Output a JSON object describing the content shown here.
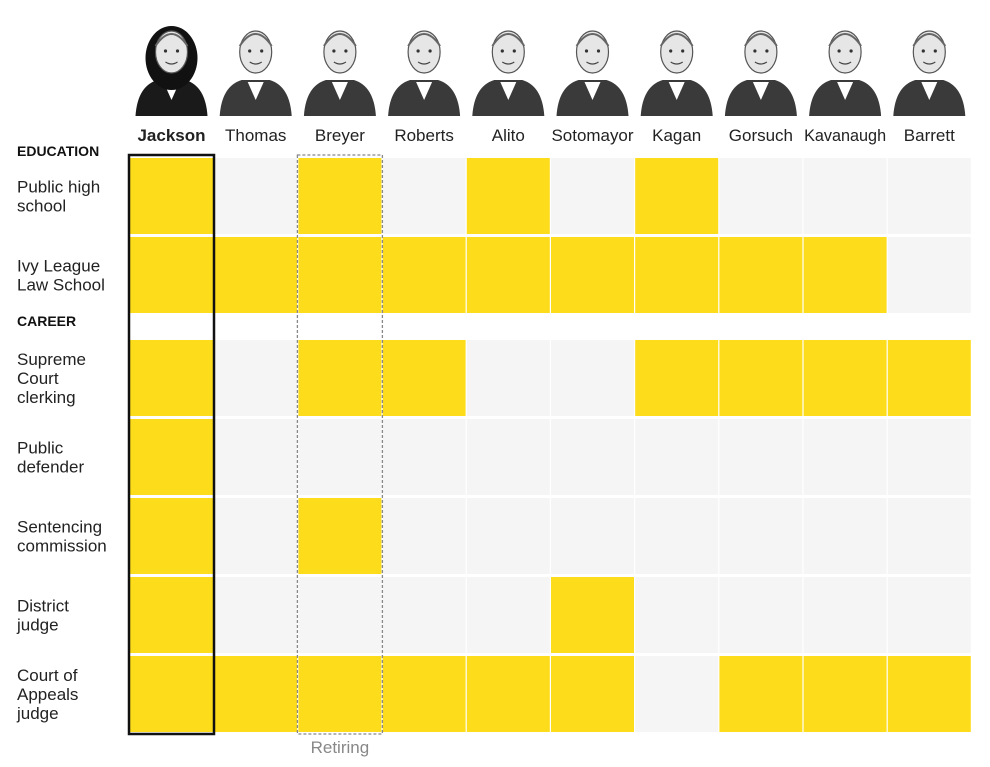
{
  "chart_data": {
    "type": "table",
    "columns": [
      "Jackson",
      "Thomas",
      "Breyer",
      "Roberts",
      "Alito",
      "Sotomayor",
      "Kagan",
      "Gorsuch",
      "Kavanaugh",
      "Barrett"
    ],
    "highlight_column": "Jackson",
    "retiring_column": "Breyer",
    "retiring_label": "Retiring",
    "sections": [
      {
        "title": "EDUCATION",
        "rows": [
          {
            "label": [
              "Public high",
              "school"
            ],
            "values": [
              1,
              0,
              1,
              0,
              1,
              0,
              1,
              0,
              0,
              0
            ]
          },
          {
            "label": [
              "Ivy League",
              "Law School"
            ],
            "values": [
              1,
              1,
              1,
              1,
              1,
              1,
              1,
              1,
              1,
              0
            ]
          }
        ]
      },
      {
        "title": "CAREER",
        "rows": [
          {
            "label": [
              "Supreme",
              "Court",
              "clerking"
            ],
            "values": [
              1,
              0,
              1,
              1,
              0,
              0,
              1,
              1,
              1,
              1
            ]
          },
          {
            "label": [
              "Public",
              "defender"
            ],
            "values": [
              1,
              0,
              0,
              0,
              0,
              0,
              0,
              0,
              0,
              0
            ]
          },
          {
            "label": [
              "Sentencing",
              "commission"
            ],
            "values": [
              1,
              0,
              1,
              0,
              0,
              0,
              0,
              0,
              0,
              0
            ]
          },
          {
            "label": [
              "District",
              "judge"
            ],
            "values": [
              1,
              0,
              0,
              0,
              0,
              1,
              0,
              0,
              0,
              0
            ]
          },
          {
            "label": [
              "Court of",
              "Appeals",
              "judge"
            ],
            "values": [
              1,
              1,
              1,
              1,
              1,
              1,
              0,
              1,
              1,
              1
            ]
          }
        ]
      }
    ],
    "colors": {
      "filled": "#fddc1b",
      "empty": "#f5f5f5",
      "highlight_border": "#111111",
      "retiring_border": "#888888",
      "text": "#222222",
      "muted_text": "#888888"
    }
  }
}
